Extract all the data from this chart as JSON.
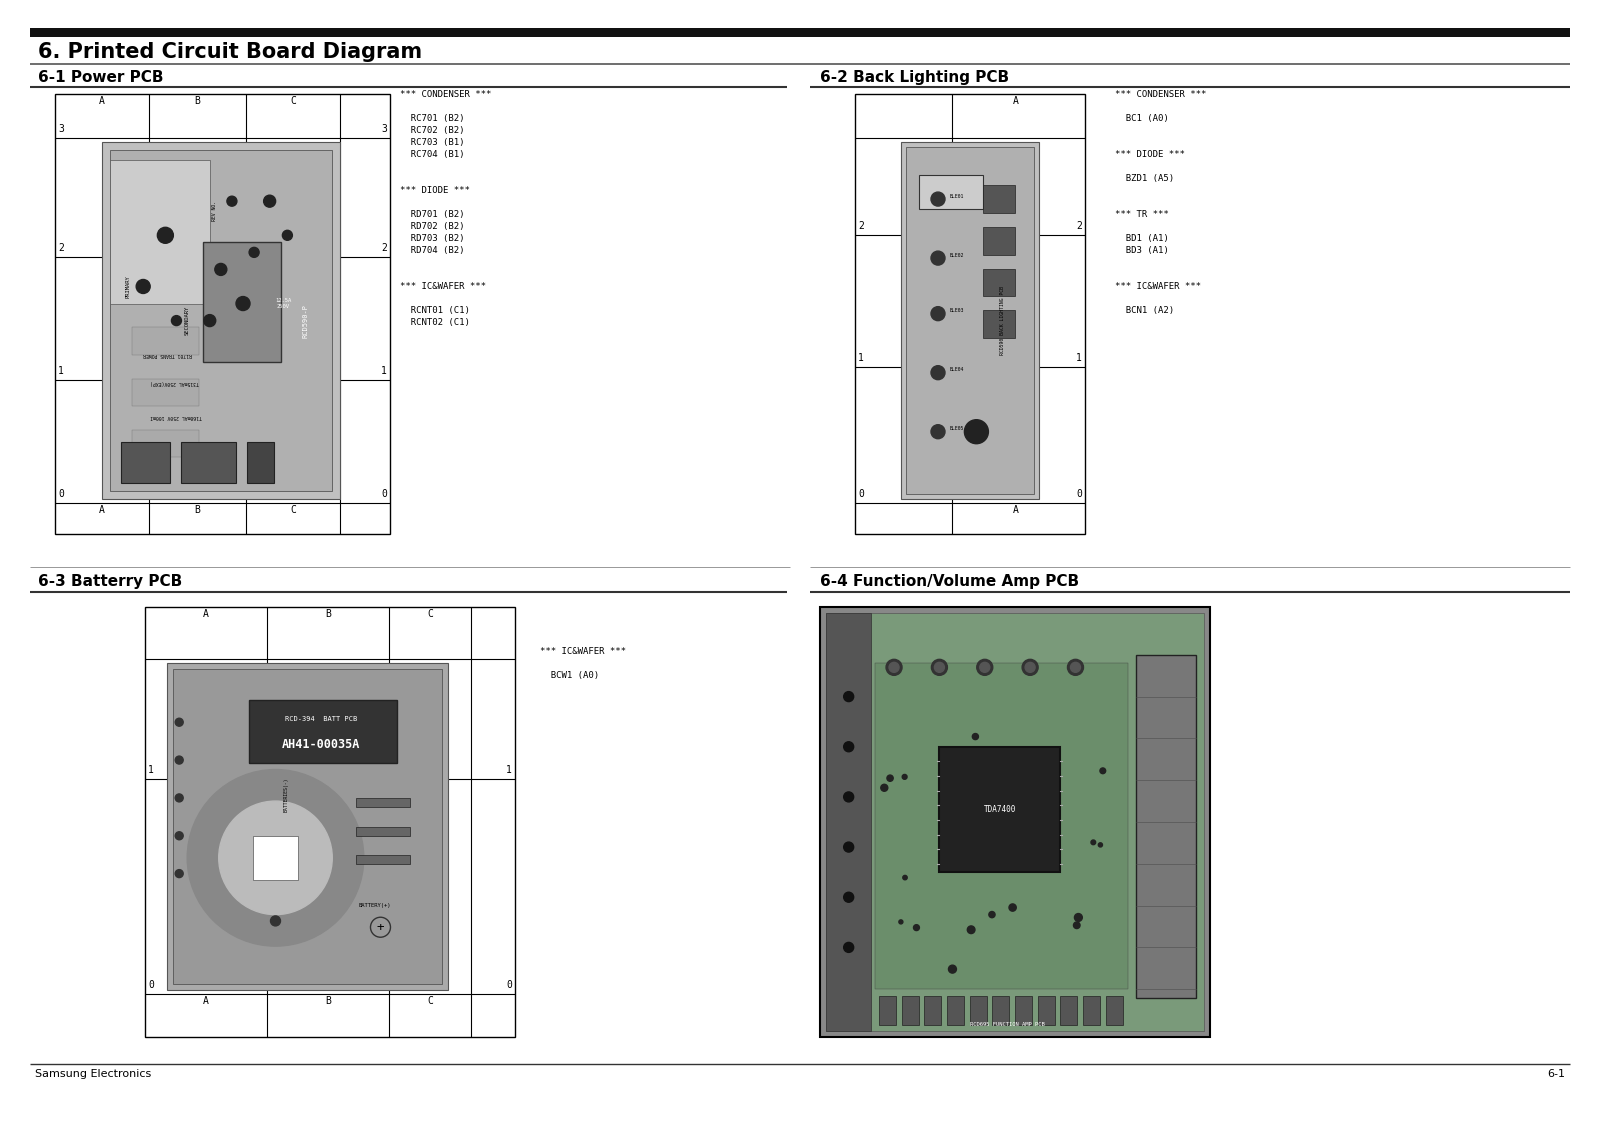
{
  "title": "6. Printed Circuit Board Diagram",
  "section1_title": "6-1 Power PCB",
  "section2_title": "6-2 Back Lighting PCB",
  "section3_title": "6-3 Batterry PCB",
  "section4_title": "6-4 Function/Volume Amp PCB",
  "footer_left": "Samsung Electronics",
  "footer_right": "6-1",
  "bg_color": "#ffffff",
  "power_pcb_legend": [
    "*** CONDENSER ***",
    "",
    "  RC701 (B2)",
    "  RC702 (B2)",
    "  RC703 (B1)",
    "  RC704 (B1)",
    "",
    "",
    "*** DIODE ***",
    "",
    "  RD701 (B2)",
    "  RD702 (B2)",
    "  RD703 (B2)",
    "  RD704 (B2)",
    "",
    "",
    "*** IC&WAFER ***",
    "",
    "  RCNT01 (C1)",
    "  RCNT02 (C1)"
  ],
  "back_lighting_legend": [
    "*** CONDENSER ***",
    "",
    "  BC1 (A0)",
    "",
    "",
    "*** DIODE ***",
    "",
    "  BZD1 (A5)",
    "",
    "",
    "*** TR ***",
    "",
    "  BD1 (A1)",
    "  BD3 (A1)",
    "",
    "",
    "*** IC&WAFER ***",
    "",
    "  BCN1 (A2)"
  ],
  "battery_legend": [
    "*** IC&WAFER ***",
    "",
    "  BCW1 (A0)"
  ],
  "pcb_gray": "#aaaaaa",
  "pcb_dark_gray": "#888888",
  "pcb_board_fill": "#b0b0b0",
  "pcb_inner_fill": "#999999"
}
